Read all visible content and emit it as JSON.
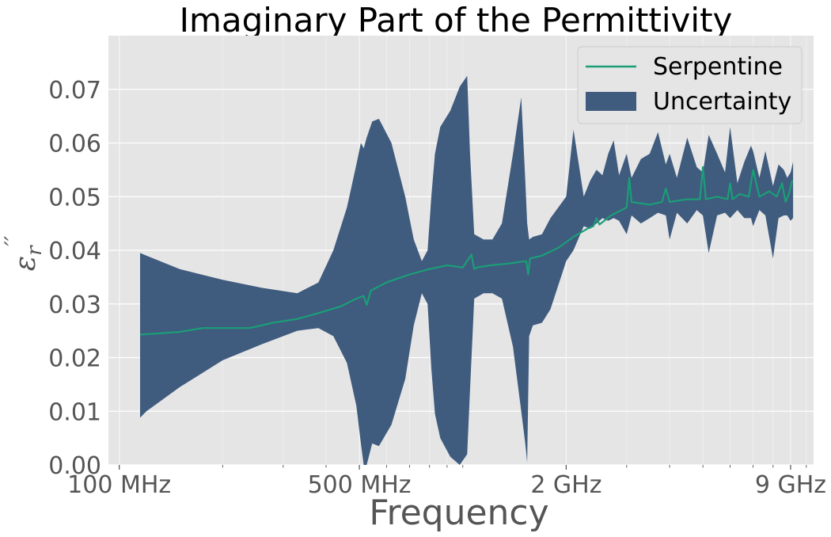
{
  "chart_data": {
    "type": "line",
    "title": "Imaginary Part of the Permittivity",
    "xlabel": "Frequency",
    "ylabel": "ε_r''",
    "x_scale": "log",
    "x_unit": "Hz",
    "xlim": [
      93000000,
      10500000000
    ],
    "ylim": [
      0,
      0.08
    ],
    "x_ticks": [
      {
        "value": 100000000,
        "label": "100 MHz"
      },
      {
        "value": 500000000,
        "label": "500 MHz"
      },
      {
        "value": 2000000000,
        "label": "2 GHz"
      },
      {
        "value": 9000000000,
        "label": "9 GHz"
      }
    ],
    "y_ticks": [
      {
        "value": 0.0,
        "label": "0.00"
      },
      {
        "value": 0.01,
        "label": "0.01"
      },
      {
        "value": 0.02,
        "label": "0.02"
      },
      {
        "value": 0.03,
        "label": "0.03"
      },
      {
        "value": 0.04,
        "label": "0.04"
      },
      {
        "value": 0.05,
        "label": "0.05"
      },
      {
        "value": 0.06,
        "label": "0.06"
      },
      {
        "value": 0.07,
        "label": "0.07"
      }
    ],
    "grid": true,
    "legend_position": "top-right",
    "series": [
      {
        "name": "Serpentine",
        "color": "#1b9e77",
        "x": [
          115000000,
          130000000,
          150000000,
          175000000,
          200000000,
          240000000,
          280000000,
          330000000,
          380000000,
          440000000,
          490000000,
          515000000,
          525000000,
          540000000,
          600000000,
          700000000,
          800000000,
          900000000,
          1000000000,
          1060000000,
          1080000000,
          1100000000,
          1200000000,
          1350000000,
          1530000000,
          1550000000,
          1570000000,
          1700000000,
          1900000000,
          2100000000,
          2300000000,
          2400000000,
          2450000000,
          2500000000,
          2700000000,
          2900000000,
          3000000000,
          3050000000,
          3100000000,
          3500000000,
          3800000000,
          3900000000,
          4000000000,
          4500000000,
          4900000000,
          5000000000,
          5100000000,
          5500000000,
          5900000000,
          6000000000,
          6100000000,
          6400000000,
          6800000000,
          7000000000,
          7300000000,
          7800000000,
          8200000000,
          8500000000,
          8700000000,
          8900000000,
          9100000000
        ],
        "values": [
          0.0243,
          0.0245,
          0.0248,
          0.0255,
          0.0255,
          0.0255,
          0.0265,
          0.0272,
          0.0283,
          0.0295,
          0.031,
          0.0315,
          0.0298,
          0.0325,
          0.034,
          0.0355,
          0.0365,
          0.0372,
          0.0368,
          0.0392,
          0.0365,
          0.0368,
          0.0372,
          0.0375,
          0.038,
          0.0355,
          0.0385,
          0.039,
          0.0405,
          0.0425,
          0.044,
          0.0445,
          0.046,
          0.0448,
          0.0465,
          0.0475,
          0.048,
          0.0535,
          0.049,
          0.0485,
          0.049,
          0.0515,
          0.049,
          0.0495,
          0.0495,
          0.0555,
          0.0495,
          0.05,
          0.0495,
          0.0525,
          0.0495,
          0.0505,
          0.05,
          0.055,
          0.05,
          0.051,
          0.05,
          0.0525,
          0.049,
          0.0505,
          0.053
        ]
      },
      {
        "name": "Uncertainty",
        "color": "#3f5b7e",
        "x": [
          115000000,
          120000000,
          150000000,
          200000000,
          260000000,
          330000000,
          380000000,
          420000000,
          460000000,
          490000000,
          505000000,
          515000000,
          525000000,
          545000000,
          570000000,
          620000000,
          680000000,
          720000000,
          760000000,
          790000000,
          810000000,
          830000000,
          860000000,
          920000000,
          980000000,
          1030000000,
          1050000000,
          1080000000,
          1150000000,
          1220000000,
          1300000000,
          1400000000,
          1480000000,
          1520000000,
          1540000000,
          1560000000,
          1600000000,
          1700000000,
          1800000000,
          2000000000,
          2100000000,
          2250000000,
          2350000000,
          2450000000,
          2550000000,
          2650000000,
          2750000000,
          2850000000,
          3000000000,
          3100000000,
          3300000000,
          3500000000,
          3700000000,
          3900000000,
          4000000000,
          4200000000,
          4500000000,
          4800000000,
          5000000000,
          5200000000,
          5500000000,
          5800000000,
          6000000000,
          6300000000,
          6600000000,
          6900000000,
          7000000000,
          7300000000,
          7600000000,
          8000000000,
          8300000000,
          8600000000,
          8800000000,
          9000000000,
          9150000000
        ],
        "upper": [
          0.0395,
          0.039,
          0.0365,
          0.0345,
          0.033,
          0.032,
          0.034,
          0.04,
          0.048,
          0.056,
          0.06,
          0.059,
          0.061,
          0.064,
          0.0645,
          0.06,
          0.05,
          0.042,
          0.038,
          0.04,
          0.05,
          0.058,
          0.063,
          0.066,
          0.0705,
          0.0725,
          0.058,
          0.043,
          0.042,
          0.042,
          0.045,
          0.058,
          0.0685,
          0.053,
          0.045,
          0.042,
          0.0425,
          0.043,
          0.046,
          0.05,
          0.0625,
          0.05,
          0.053,
          0.055,
          0.054,
          0.058,
          0.0605,
          0.054,
          0.058,
          0.0535,
          0.057,
          0.058,
          0.062,
          0.056,
          0.058,
          0.0535,
          0.061,
          0.0555,
          0.0545,
          0.0615,
          0.058,
          0.0545,
          0.063,
          0.0525,
          0.0565,
          0.0595,
          0.0585,
          0.0535,
          0.0585,
          0.052,
          0.056,
          0.055,
          0.0535,
          0.0545,
          0.0565
        ],
        "lower": [
          0.0088,
          0.01,
          0.0145,
          0.0195,
          0.0225,
          0.025,
          0.0255,
          0.024,
          0.019,
          0.011,
          0.004,
          0.0,
          0.0,
          0.004,
          0.0035,
          0.0075,
          0.016,
          0.026,
          0.032,
          0.03,
          0.018,
          0.0095,
          0.005,
          0.0015,
          0.0,
          0.002,
          0.014,
          0.031,
          0.032,
          0.032,
          0.031,
          0.022,
          0.01,
          0.004,
          0.0005,
          0.024,
          0.026,
          0.0265,
          0.029,
          0.038,
          0.04,
          0.0445,
          0.044,
          0.045,
          0.046,
          0.0455,
          0.046,
          0.0455,
          0.043,
          0.0465,
          0.045,
          0.046,
          0.047,
          0.0465,
          0.042,
          0.047,
          0.045,
          0.0475,
          0.0465,
          0.0395,
          0.0465,
          0.047,
          0.046,
          0.0475,
          0.046,
          0.046,
          0.0445,
          0.0475,
          0.0465,
          0.0385,
          0.046,
          0.0465,
          0.0465,
          0.0455,
          0.046
        ]
      }
    ]
  }
}
